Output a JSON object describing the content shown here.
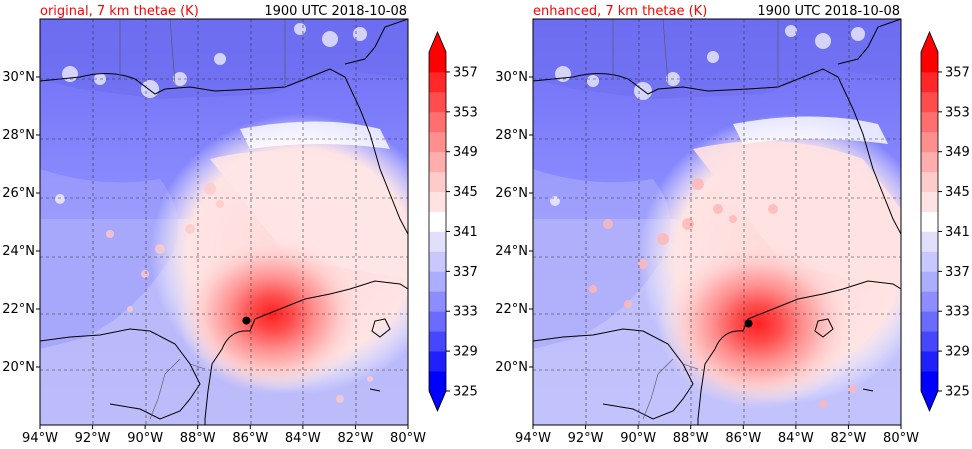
{
  "panels": [
    {
      "id": "original",
      "title_left": "original, 7 km thetae (K)",
      "title_right": "1900 UTC 2018-10-08",
      "storm_center": {
        "lon": -86.15,
        "lat": 21.6
      }
    },
    {
      "id": "enhanced",
      "title_left": "enhanced, 7 km thetae (K)",
      "title_right": "1900 UTC 2018-10-08",
      "storm_center": {
        "lon": -85.8,
        "lat": 21.5
      }
    }
  ],
  "map_extent": {
    "lon_min": -94,
    "lon_max": -80,
    "lat_min": 18,
    "lat_max": 32
  },
  "lon_ticks": [
    {
      "value": -94,
      "label": "94°W"
    },
    {
      "value": -92,
      "label": "92°W"
    },
    {
      "value": -90,
      "label": "90°W"
    },
    {
      "value": -88,
      "label": "88°W"
    },
    {
      "value": -86,
      "label": "86°W"
    },
    {
      "value": -84,
      "label": "84°W"
    },
    {
      "value": -82,
      "label": "82°W"
    },
    {
      "value": -80,
      "label": "80°W"
    }
  ],
  "lat_ticks": [
    {
      "value": 20,
      "label": "20°N"
    },
    {
      "value": 22,
      "label": "22°N"
    },
    {
      "value": 24,
      "label": "24°N"
    },
    {
      "value": 26,
      "label": "26°N"
    },
    {
      "value": 28,
      "label": "28°N"
    },
    {
      "value": 30,
      "label": "30°N"
    }
  ],
  "colorbar": {
    "levels": [
      325,
      327,
      329,
      331,
      333,
      335,
      337,
      339,
      341,
      343,
      345,
      347,
      349,
      351,
      353,
      355,
      357,
      359
    ],
    "tick_labels": [
      "325",
      "329",
      "333",
      "337",
      "341",
      "345",
      "349",
      "353",
      "357"
    ],
    "colors": [
      "#0000ff",
      "#2020ff",
      "#4646ff",
      "#6b6bff",
      "#8d8dff",
      "#adadff",
      "#c8c8ff",
      "#e0e0fb",
      "#ffffff",
      "#ffe2e2",
      "#ffcaca",
      "#ffadad",
      "#ff8f8f",
      "#ff6f6f",
      "#ff4d4d",
      "#ff2727",
      "#ff0000"
    ],
    "under_color": "#0000ff",
    "over_color": "#ff0000"
  },
  "colors": {
    "title_left": "#ff0000",
    "title_right": "#000000",
    "center_dot": "#000000"
  }
}
